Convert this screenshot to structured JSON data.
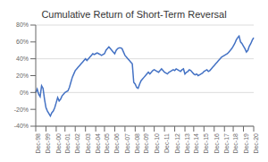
{
  "chart_data": {
    "type": "line",
    "title": "Cumulative Return of Short-Term Reversal",
    "categories": [
      "Dec-98",
      null,
      null,
      null,
      null,
      null,
      null,
      "Dec-99",
      null,
      null,
      null,
      null,
      null,
      null,
      "Dec-00",
      null,
      null,
      null,
      null,
      null,
      "Dec-01",
      null,
      null,
      null,
      null,
      null,
      null,
      "Dec-02",
      null,
      null,
      null,
      null,
      null,
      null,
      "Dec-03",
      null,
      null,
      null,
      null,
      null,
      null,
      "Dec-04",
      null,
      null,
      null,
      null,
      null,
      "Dec-05",
      null,
      null,
      null,
      null,
      null,
      null,
      "Dec-06",
      null,
      null,
      null,
      null,
      null,
      null,
      "Dec-07",
      null,
      null,
      null,
      null,
      null,
      null,
      "Dec-08",
      null,
      null,
      null,
      null,
      null,
      "Dec-09",
      null,
      null,
      null,
      null,
      null,
      null,
      "Dec-10",
      null,
      null,
      null,
      null,
      null,
      null,
      "Dec-11",
      null,
      null,
      null,
      null,
      null,
      null,
      "Dec-12",
      null,
      null,
      null,
      null,
      null,
      null,
      "Dec-13",
      null,
      null,
      null,
      null,
      null,
      "Dec-14",
      null,
      null,
      null,
      null,
      null,
      null,
      "Dec-15",
      null,
      null,
      null,
      null,
      null,
      null,
      "Dec-16",
      null,
      null,
      null,
      null,
      null,
      null,
      "Dec-17",
      null,
      null,
      null,
      null,
      null,
      "Dec-18",
      null,
      null,
      null,
      null,
      null,
      null,
      "Dec-19",
      null,
      null,
      null,
      null,
      null,
      null,
      "Dec-20"
    ],
    "values": [
      0.0,
      0.04,
      -0.02,
      -0.05,
      0.08,
      0.05,
      -0.08,
      -0.18,
      -0.22,
      -0.25,
      -0.28,
      -0.24,
      -0.22,
      -0.18,
      -0.12,
      -0.06,
      -0.1,
      -0.08,
      -0.04,
      -0.02,
      0.0,
      0.01,
      0.02,
      0.06,
      0.12,
      0.18,
      0.22,
      0.26,
      0.28,
      0.3,
      0.32,
      0.34,
      0.36,
      0.38,
      0.4,
      0.38,
      0.4,
      0.42,
      0.44,
      0.46,
      0.45,
      0.46,
      0.47,
      0.46,
      0.45,
      0.44,
      0.45,
      0.46,
      0.5,
      0.52,
      0.54,
      0.52,
      0.5,
      0.48,
      0.46,
      0.5,
      0.52,
      0.53,
      0.53,
      0.52,
      0.48,
      0.44,
      0.42,
      0.4,
      0.38,
      0.36,
      0.34,
      0.12,
      0.1,
      0.06,
      0.05,
      0.1,
      0.14,
      0.16,
      0.18,
      0.2,
      0.22,
      0.24,
      0.22,
      0.24,
      0.26,
      0.27,
      0.26,
      0.25,
      0.24,
      0.26,
      0.28,
      0.26,
      0.24,
      0.23,
      0.22,
      0.24,
      0.25,
      0.26,
      0.27,
      0.26,
      0.28,
      0.27,
      0.26,
      0.25,
      0.27,
      0.28,
      0.22,
      0.24,
      0.25,
      0.27,
      0.26,
      0.24,
      0.22,
      0.21,
      0.22,
      0.2,
      0.21,
      0.22,
      0.23,
      0.25,
      0.26,
      0.27,
      0.25,
      0.26,
      0.28,
      0.3,
      0.32,
      0.34,
      0.36,
      0.38,
      0.4,
      0.42,
      0.43,
      0.44,
      0.45,
      0.46,
      0.48,
      0.5,
      0.52,
      0.55,
      0.58,
      0.62,
      0.65,
      0.67,
      0.6,
      0.58,
      0.55,
      0.52,
      0.48,
      0.5,
      0.55,
      0.58,
      0.62,
      0.65
    ],
    "color": "#4472C4",
    "ylim": [
      -0.4,
      0.8
    ],
    "yticks": [
      {
        "value": -0.4,
        "label": "-40%"
      },
      {
        "value": -0.2,
        "label": "-20%"
      },
      {
        "value": 0.0,
        "label": "0%"
      },
      {
        "value": 0.2,
        "label": "20%"
      },
      {
        "value": 0.4,
        "label": "40%"
      },
      {
        "value": 0.6,
        "label": "60%"
      },
      {
        "value": 0.8,
        "label": "80%"
      }
    ],
    "grid": true
  }
}
